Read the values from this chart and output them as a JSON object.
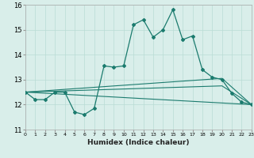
{
  "xlabel": "Humidex (Indice chaleur)",
  "bg_color": "#d9eeea",
  "grid_color": "#b8dcd5",
  "line_color": "#1b7b6e",
  "xlim": [
    0,
    23
  ],
  "ylim": [
    11,
    16
  ],
  "yticks": [
    11,
    12,
    13,
    14,
    15,
    16
  ],
  "xtick_labels": [
    "0",
    "1",
    "2",
    "3",
    "4",
    "5",
    "6",
    "7",
    "8",
    "9",
    "10",
    "11",
    "12",
    "13",
    "14",
    "15",
    "16",
    "17",
    "18",
    "19",
    "20",
    "21",
    "22",
    "23"
  ],
  "series1_x": [
    0,
    1,
    2,
    3,
    4,
    5,
    6,
    7,
    8,
    9,
    10,
    11,
    12,
    13,
    14,
    15,
    16,
    17,
    18,
    19,
    20,
    21,
    22,
    23
  ],
  "series1_y": [
    12.5,
    12.2,
    12.2,
    12.5,
    12.5,
    11.7,
    11.6,
    11.85,
    13.55,
    13.5,
    13.55,
    15.2,
    15.4,
    14.7,
    15.0,
    15.8,
    14.6,
    14.75,
    13.4,
    13.1,
    13.0,
    12.45,
    12.1,
    12.0
  ],
  "series2_x": [
    0,
    23
  ],
  "series2_y": [
    12.5,
    12.0
  ],
  "series3_x": [
    0,
    20,
    23
  ],
  "series3_y": [
    12.5,
    13.05,
    12.0
  ],
  "series4_x": [
    0,
    20,
    23
  ],
  "series4_y": [
    12.5,
    12.75,
    12.0
  ],
  "xlabel_fontsize": 6.5,
  "ytick_fontsize": 6,
  "xtick_fontsize": 4.5
}
